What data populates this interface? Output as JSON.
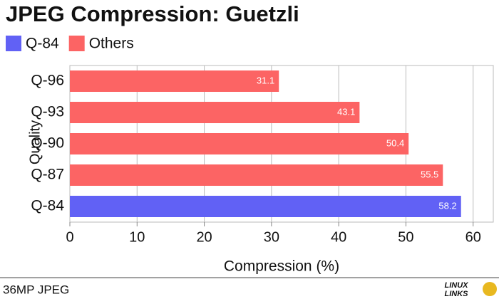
{
  "chart_data": {
    "type": "hbar",
    "title": "JPEG Compression: Guetzli",
    "categories": [
      "Q-96",
      "Q-93",
      "Q-90",
      "Q-87",
      "Q-84"
    ],
    "series": [
      {
        "name": "Q-84",
        "color": "#6161f5",
        "values": [
          null,
          null,
          null,
          null,
          58.2
        ]
      },
      {
        "name": "Others",
        "color": "#fc6464",
        "values": [
          31.1,
          43.1,
          50.4,
          55.5,
          null
        ]
      }
    ],
    "xlim": [
      0,
      63
    ],
    "xticks": [
      0,
      10,
      20,
      30,
      40,
      50,
      60
    ],
    "grid": true,
    "xlabel": "Compression (%)",
    "ylabel": "Quality"
  },
  "footer": {
    "text": "36MP JPEG",
    "logo": [
      "LINUX",
      "LINKS"
    ]
  }
}
